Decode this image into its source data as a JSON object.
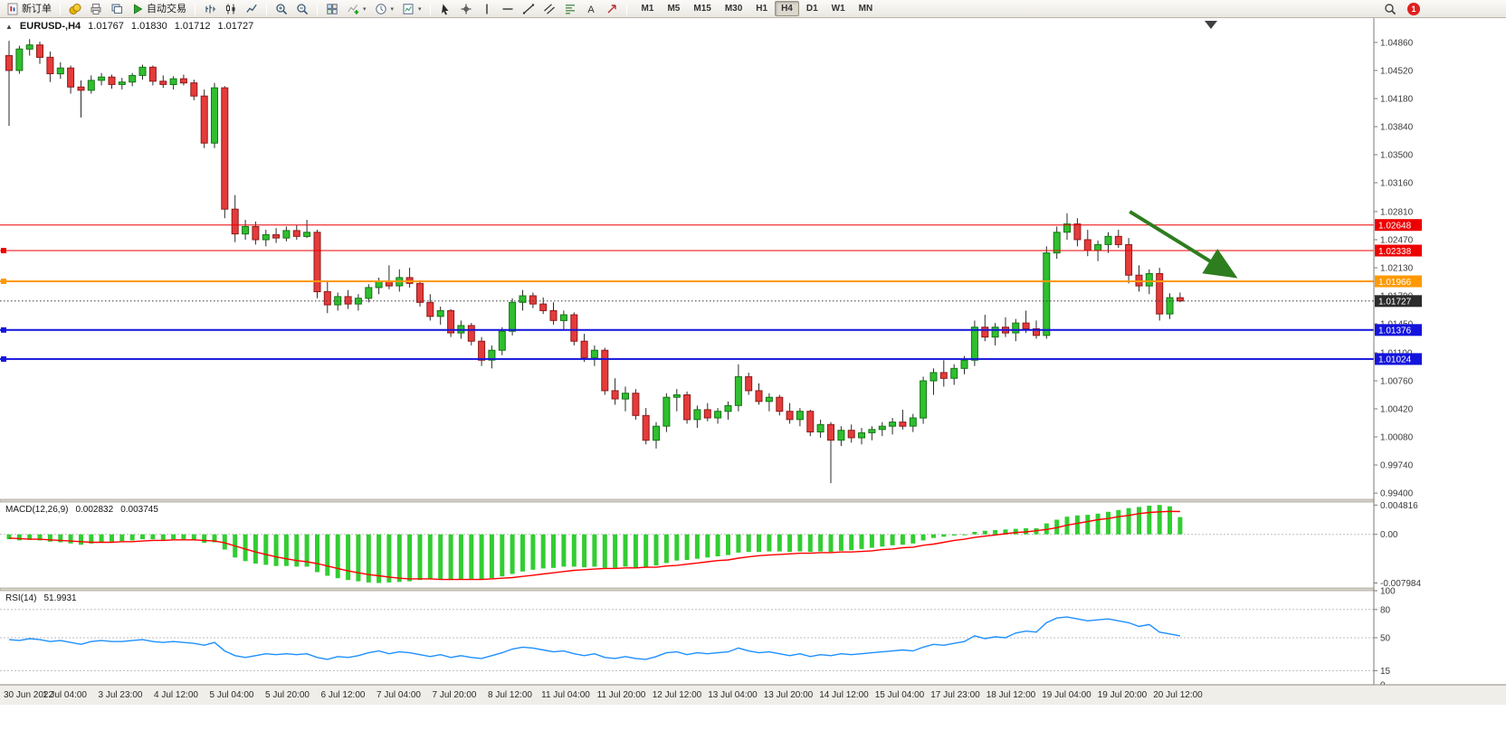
{
  "toolbar": {
    "new_order": {
      "label": "新订单",
      "icon": "new-order-icon"
    },
    "std_icons": [
      "deposit-icon",
      "print-icon",
      "window-layout-icon"
    ],
    "autotrading": {
      "label": "自动交易",
      "icon": "autotrading-icon"
    },
    "chart_icons": [
      "bar-chart-icon",
      "candlestick-chart-icon",
      "line-chart-icon"
    ],
    "zoom_icons": [
      "zoom-in-icon",
      "zoom-out-icon"
    ],
    "window_icons": [
      {
        "icon": "tile-windows-icon",
        "caret": false
      },
      {
        "icon": "indicators-icon",
        "caret": true
      },
      {
        "icon": "periods-icon",
        "caret": true
      },
      {
        "icon": "templates-icon",
        "caret": true
      }
    ],
    "draw_icons": [
      "cursor-icon",
      "crosshair-icon",
      "vertical-line-icon",
      "horizontal-line-icon",
      "trendline-icon",
      "channel-icon",
      "fibonacci-icon",
      "text-label-icon",
      "arrow-tool-icon"
    ],
    "timeframes": {
      "options": [
        "M1",
        "M5",
        "M15",
        "M30",
        "H1",
        "H4",
        "D1",
        "W1",
        "MN"
      ],
      "active": "H4"
    },
    "right": {
      "search_icon": "search-icon",
      "notification_count": "1"
    }
  },
  "colors": {
    "bull": "#2FBF2F",
    "bull_border": "#157515",
    "bear": "#E53B3B",
    "bear_border": "#8F1A1A",
    "wick": "#2A2A2A",
    "macd_histogram": "#32CD32",
    "macd_signal": "#FF0000",
    "rsi_line": "#1E90FF",
    "b_red": "#EE0000",
    "b_orange": "#FF9900",
    "b_blue": "#1414DC",
    "bid_badge": "#2B2B2B"
  },
  "chart": {
    "title": {
      "symbol": "EURUSD-,H4",
      "open": "1.01767",
      "high": "1.01830",
      "low": "1.01712",
      "close": "1.01727"
    },
    "price_axis": [
      "1.04860",
      "1.04520",
      "1.04180",
      "1.03840",
      "1.03500",
      "1.03160",
      "1.02810",
      "1.02470",
      "1.02130",
      "1.01790",
      "1.01450",
      "1.01100",
      "1.00760",
      "1.00420",
      "1.00080",
      "0.99740",
      "0.99400"
    ],
    "time_axis": [
      "30 Jun 2022",
      "1 Jul 04:00",
      "3 Jul 23:00",
      "4 Jul 12:00",
      "5 Jul 04:00",
      "5 Jul 20:00",
      "6 Jul 12:00",
      "7 Jul 04:00",
      "7 Jul 20:00",
      "8 Jul 12:00",
      "11 Jul 04:00",
      "11 Jul 20:00",
      "12 Jul 12:00",
      "13 Jul 04:00",
      "13 Jul 20:00",
      "14 Jul 12:00",
      "15 Jul 04:00",
      "17 Jul 23:00",
      "18 Jul 12:00",
      "19 Jul 04:00",
      "19 Jul 20:00",
      "20 Jul 12:00"
    ],
    "hlines": [
      {
        "price": 1.02648,
        "label": "1.02648",
        "color": "#EE0000",
        "width": 1,
        "handle": false
      },
      {
        "price": 1.02338,
        "label": "1.02338",
        "color": "#EE0000",
        "width": 1,
        "handle": true
      },
      {
        "price": 1.01966,
        "label": "1.01966",
        "color": "#FF9900",
        "width": 2,
        "handle": true
      },
      {
        "price": 1.01376,
        "label": "1.01376",
        "color": "#1414DC",
        "width": 2,
        "handle": true
      },
      {
        "price": 1.01024,
        "label": "1.01024",
        "color": "#1414DC",
        "width": 2,
        "handle": true
      }
    ],
    "bid_line": {
      "price": 1.01727,
      "label": "1.01727"
    },
    "arrow": {
      "i1": 109.1,
      "p1": 1.0281,
      "i2": 119.0,
      "p2": 1.0205,
      "color": "#2E7D1F"
    }
  },
  "chart_data": {
    "type": "candlestick",
    "symbol": "EURUSD",
    "timeframe": "H4",
    "candles": [
      [
        1.047,
        1.0488,
        1.0385,
        1.0452
      ],
      [
        1.0452,
        1.0482,
        1.0448,
        1.0478
      ],
      [
        1.0478,
        1.049,
        1.047,
        1.0483
      ],
      [
        1.0483,
        1.0487,
        1.046,
        1.0468
      ],
      [
        1.0468,
        1.0475,
        1.0438,
        1.0448
      ],
      [
        1.0448,
        1.0462,
        1.0442,
        1.0455
      ],
      [
        1.0455,
        1.0458,
        1.0424,
        1.0432
      ],
      [
        1.0432,
        1.044,
        1.0395,
        1.0428
      ],
      [
        1.0428,
        1.0446,
        1.0424,
        1.044
      ],
      [
        1.044,
        1.0449,
        1.0434,
        1.0444
      ],
      [
        1.0444,
        1.0447,
        1.043,
        1.0435
      ],
      [
        1.0435,
        1.0443,
        1.0429,
        1.0438
      ],
      [
        1.0438,
        1.0449,
        1.0433,
        1.0446
      ],
      [
        1.0446,
        1.0459,
        1.0441,
        1.0456
      ],
      [
        1.0456,
        1.0458,
        1.0434,
        1.0439
      ],
      [
        1.0439,
        1.0446,
        1.0431,
        1.0435
      ],
      [
        1.0435,
        1.0445,
        1.0429,
        1.0442
      ],
      [
        1.0442,
        1.0447,
        1.0434,
        1.0437
      ],
      [
        1.0437,
        1.0441,
        1.0416,
        1.0421
      ],
      [
        1.0421,
        1.0429,
        1.0358,
        1.0364
      ],
      [
        1.0364,
        1.0437,
        1.0358,
        1.0431
      ],
      [
        1.0431,
        1.0433,
        1.0273,
        1.0284
      ],
      [
        1.0284,
        1.0301,
        1.0244,
        1.0254
      ],
      [
        1.0254,
        1.0271,
        1.0247,
        1.0263
      ],
      [
        1.0263,
        1.0269,
        1.0241,
        1.0247
      ],
      [
        1.0247,
        1.0259,
        1.0239,
        1.0253
      ],
      [
        1.0253,
        1.0261,
        1.0243,
        1.0249
      ],
      [
        1.0249,
        1.0263,
        1.0245,
        1.0258
      ],
      [
        1.0258,
        1.0265,
        1.0247,
        1.0251
      ],
      [
        1.0251,
        1.0271,
        1.0249,
        1.0256
      ],
      [
        1.0256,
        1.0259,
        1.0176,
        1.0184
      ],
      [
        1.0184,
        1.0196,
        1.0158,
        1.0168
      ],
      [
        1.0168,
        1.0183,
        1.0161,
        1.0178
      ],
      [
        1.0178,
        1.0186,
        1.0163,
        1.0169
      ],
      [
        1.0169,
        1.0181,
        1.0161,
        1.0176
      ],
      [
        1.0176,
        1.0193,
        1.0171,
        1.0189
      ],
      [
        1.0189,
        1.0201,
        1.0181,
        1.0196
      ],
      [
        1.0196,
        1.0216,
        1.0187,
        1.0191
      ],
      [
        1.0191,
        1.0211,
        1.0184,
        1.0201
      ],
      [
        1.0201,
        1.0213,
        1.0189,
        1.0194
      ],
      [
        1.0194,
        1.0198,
        1.0166,
        1.0171
      ],
      [
        1.0171,
        1.0181,
        1.0149,
        1.0154
      ],
      [
        1.0154,
        1.0166,
        1.0144,
        1.0161
      ],
      [
        1.0161,
        1.0163,
        1.0129,
        1.0134
      ],
      [
        1.0134,
        1.0149,
        1.0127,
        1.0143
      ],
      [
        1.0143,
        1.0146,
        1.0119,
        1.0124
      ],
      [
        1.0124,
        1.0129,
        1.0094,
        1.0101
      ],
      [
        1.0101,
        1.0119,
        1.0091,
        1.0113
      ],
      [
        1.0113,
        1.0141,
        1.0107,
        1.0136
      ],
      [
        1.0136,
        1.0176,
        1.0131,
        1.0171
      ],
      [
        1.0171,
        1.0186,
        1.0161,
        1.0179
      ],
      [
        1.0179,
        1.0183,
        1.0164,
        1.0169
      ],
      [
        1.0169,
        1.0177,
        1.0157,
        1.0161
      ],
      [
        1.0161,
        1.0171,
        1.0144,
        1.0149
      ],
      [
        1.0149,
        1.0161,
        1.0137,
        1.0156
      ],
      [
        1.0156,
        1.0159,
        1.0119,
        1.0124
      ],
      [
        1.0124,
        1.0133,
        1.0099,
        1.0104
      ],
      [
        1.0104,
        1.0119,
        1.0094,
        1.0113
      ],
      [
        1.0113,
        1.0116,
        1.0059,
        1.0064
      ],
      [
        1.0064,
        1.0079,
        1.0047,
        1.0054
      ],
      [
        1.0054,
        1.0069,
        1.0039,
        1.0061
      ],
      [
        1.0061,
        1.0066,
        1.0029,
        1.0034
      ],
      [
        1.0034,
        1.0043,
        0.9999,
        1.0004
      ],
      [
        1.0004,
        1.0026,
        0.9994,
        1.0021
      ],
      [
        1.0021,
        1.0061,
        1.0014,
        1.0056
      ],
      [
        1.0056,
        1.0066,
        1.0039,
        1.0059
      ],
      [
        1.0059,
        1.0063,
        1.0024,
        1.0029
      ],
      [
        1.0029,
        1.0046,
        1.0019,
        1.0041
      ],
      [
        1.0041,
        1.0049,
        1.0027,
        1.0031
      ],
      [
        1.0031,
        1.0043,
        1.0024,
        1.0039
      ],
      [
        1.0039,
        1.0051,
        1.0029,
        1.0046
      ],
      [
        1.0046,
        1.0096,
        1.0039,
        1.0081
      ],
      [
        1.0081,
        1.0086,
        1.0059,
        1.0064
      ],
      [
        1.0064,
        1.0073,
        1.0047,
        1.0051
      ],
      [
        1.0051,
        1.0061,
        1.0039,
        1.0056
      ],
      [
        1.0056,
        1.0059,
        1.0034,
        1.0039
      ],
      [
        1.0039,
        1.0049,
        1.0024,
        1.0029
      ],
      [
        1.0029,
        1.0043,
        1.0021,
        1.0039
      ],
      [
        1.0039,
        1.0041,
        1.0009,
        1.0014
      ],
      [
        1.0014,
        1.0029,
        1.0007,
        1.0023
      ],
      [
        1.0023,
        1.0026,
        0.9952,
        1.0004
      ],
      [
        1.0004,
        1.0021,
        0.9997,
        1.0016
      ],
      [
        1.0016,
        1.0023,
        1.0001,
        1.0007
      ],
      [
        1.0007,
        1.0019,
        0.9999,
        1.0013
      ],
      [
        1.0013,
        1.0021,
        1.0004,
        1.0017
      ],
      [
        1.0017,
        1.0026,
        1.0009,
        1.0021
      ],
      [
        1.0021,
        1.0031,
        1.0011,
        1.0026
      ],
      [
        1.0026,
        1.0041,
        1.0017,
        1.0021
      ],
      [
        1.0021,
        1.0036,
        1.0014,
        1.0031
      ],
      [
        1.0031,
        1.0081,
        1.0024,
        1.0076
      ],
      [
        1.0076,
        1.0091,
        1.0059,
        1.0086
      ],
      [
        1.0086,
        1.0101,
        1.0069,
        1.0079
      ],
      [
        1.0079,
        1.0096,
        1.0071,
        1.0091
      ],
      [
        1.0091,
        1.0106,
        1.0084,
        1.0101
      ],
      [
        1.0101,
        1.0149,
        1.0094,
        1.0141
      ],
      [
        1.0141,
        1.0156,
        1.0124,
        1.0129
      ],
      [
        1.0129,
        1.0146,
        1.0119,
        1.0141
      ],
      [
        1.0141,
        1.0153,
        1.0129,
        1.0134
      ],
      [
        1.0134,
        1.0151,
        1.0124,
        1.0146
      ],
      [
        1.0146,
        1.0161,
        1.0134,
        1.0139
      ],
      [
        1.0139,
        1.0149,
        1.0127,
        1.0131
      ],
      [
        1.0131,
        1.0239,
        1.0127,
        1.0231
      ],
      [
        1.0231,
        1.0263,
        1.0224,
        1.0256
      ],
      [
        1.0256,
        1.0279,
        1.0247,
        1.0266
      ],
      [
        1.0266,
        1.0273,
        1.0239,
        1.0247
      ],
      [
        1.0247,
        1.0259,
        1.0227,
        1.0234
      ],
      [
        1.0234,
        1.0246,
        1.0221,
        1.0241
      ],
      [
        1.0241,
        1.0256,
        1.0231,
        1.0251
      ],
      [
        1.0251,
        1.0259,
        1.0237,
        1.0241
      ],
      [
        1.0241,
        1.0249,
        1.0194,
        1.0204
      ],
      [
        1.0204,
        1.0216,
        1.0184,
        1.0191
      ],
      [
        1.0191,
        1.0211,
        1.0181,
        1.0206
      ],
      [
        1.0206,
        1.0213,
        1.0149,
        1.0157
      ],
      [
        1.0157,
        1.0182,
        1.0151,
        1.01767
      ],
      [
        1.01767,
        1.0183,
        1.01712,
        1.01727
      ]
    ],
    "macd": {
      "label": "MACD(12,26,9)",
      "value": "0.002832",
      "signal_value": "0.003745",
      "axis": [
        "0.004816",
        "0.00",
        "-0.007984"
      ],
      "histogram": [
        -0.0008,
        -0.001,
        -0.0009,
        -0.001,
        -0.0012,
        -0.0013,
        -0.0015,
        -0.0017,
        -0.0015,
        -0.0013,
        -0.0012,
        -0.0011,
        -0.001,
        -0.0008,
        -0.0008,
        -0.0009,
        -0.0008,
        -0.0008,
        -0.001,
        -0.0014,
        -0.0013,
        -0.0025,
        -0.0038,
        -0.0044,
        -0.0048,
        -0.005,
        -0.0052,
        -0.0052,
        -0.0053,
        -0.0053,
        -0.0062,
        -0.0068,
        -0.0072,
        -0.0075,
        -0.0077,
        -0.0079,
        -0.00798,
        -0.0079,
        -0.0078,
        -0.0077,
        -0.0075,
        -0.0074,
        -0.0074,
        -0.0075,
        -0.0074,
        -0.0073,
        -0.0074,
        -0.0072,
        -0.0069,
        -0.0065,
        -0.0061,
        -0.0058,
        -0.0056,
        -0.0055,
        -0.0053,
        -0.0053,
        -0.0054,
        -0.0053,
        -0.0055,
        -0.0055,
        -0.0053,
        -0.0054,
        -0.0054,
        -0.0051,
        -0.0047,
        -0.0043,
        -0.0042,
        -0.004,
        -0.0038,
        -0.0036,
        -0.0034,
        -0.003,
        -0.0029,
        -0.0029,
        -0.0028,
        -0.0028,
        -0.0029,
        -0.0028,
        -0.0029,
        -0.0028,
        -0.0029,
        -0.0027,
        -0.0026,
        -0.0024,
        -0.0022,
        -0.002,
        -0.0018,
        -0.0017,
        -0.0015,
        -0.001,
        -0.0006,
        -0.0004,
        -0.0002,
        0.0,
        0.0004,
        0.0006,
        0.0007,
        0.0008,
        0.0009,
        0.001,
        0.001,
        0.0018,
        0.0024,
        0.0029,
        0.0031,
        0.0032,
        0.0034,
        0.0037,
        0.004,
        0.0043,
        0.0045,
        0.0047,
        0.00482,
        0.0046,
        0.002832
      ],
      "signal": [
        -0.0006,
        -0.0007,
        -0.0008,
        -0.0008,
        -0.0009,
        -0.001,
        -0.0011,
        -0.0012,
        -0.0013,
        -0.0013,
        -0.0013,
        -0.0012,
        -0.0012,
        -0.0011,
        -0.001,
        -0.001,
        -0.0009,
        -0.0009,
        -0.0009,
        -0.001,
        -0.0011,
        -0.0014,
        -0.0019,
        -0.0024,
        -0.0029,
        -0.0033,
        -0.0037,
        -0.004,
        -0.0043,
        -0.0045,
        -0.0048,
        -0.0052,
        -0.0056,
        -0.006,
        -0.0063,
        -0.0066,
        -0.0068,
        -0.007,
        -0.0072,
        -0.0073,
        -0.0073,
        -0.0073,
        -0.0074,
        -0.0074,
        -0.0074,
        -0.0074,
        -0.0074,
        -0.0073,
        -0.0072,
        -0.0071,
        -0.0069,
        -0.0067,
        -0.0065,
        -0.0063,
        -0.0061,
        -0.0059,
        -0.0058,
        -0.0057,
        -0.0056,
        -0.0056,
        -0.0055,
        -0.0055,
        -0.0054,
        -0.0054,
        -0.0052,
        -0.0051,
        -0.0049,
        -0.0047,
        -0.0045,
        -0.0043,
        -0.0042,
        -0.0039,
        -0.0037,
        -0.0035,
        -0.0034,
        -0.0033,
        -0.0032,
        -0.0031,
        -0.0031,
        -0.003,
        -0.003,
        -0.0029,
        -0.0029,
        -0.0028,
        -0.0027,
        -0.0025,
        -0.0024,
        -0.0022,
        -0.0021,
        -0.0018,
        -0.0016,
        -0.0013,
        -0.001,
        -0.0008,
        -0.0005,
        -0.0003,
        -0.0001,
        0.0001,
        0.0003,
        0.0004,
        0.0006,
        0.0008,
        0.0011,
        0.0015,
        0.0018,
        0.0021,
        0.0024,
        0.0026,
        0.0029,
        0.0031,
        0.0034,
        0.0036,
        0.0037,
        0.00377,
        0.003745
      ]
    },
    "rsi": {
      "label": "RSI(14)",
      "value": "51.9931",
      "axis": [
        "100",
        "80",
        "50",
        "15",
        "0"
      ],
      "levels": [
        80,
        50,
        15
      ],
      "values": [
        48,
        47,
        49,
        48,
        46,
        47,
        45,
        43,
        46,
        47,
        46,
        46,
        47,
        48,
        46,
        45,
        46,
        45,
        44,
        42,
        45,
        36,
        31,
        29,
        31,
        33,
        32,
        33,
        32,
        33,
        29,
        27,
        30,
        29,
        31,
        34,
        36,
        33,
        35,
        34,
        32,
        30,
        32,
        29,
        31,
        29,
        28,
        31,
        34,
        38,
        40,
        39,
        37,
        35,
        36,
        33,
        31,
        33,
        29,
        28,
        30,
        28,
        27,
        30,
        34,
        35,
        32,
        34,
        33,
        34,
        35,
        39,
        36,
        34,
        35,
        33,
        31,
        33,
        30,
        32,
        31,
        33,
        32,
        33,
        34,
        35,
        36,
        37,
        36,
        40,
        43,
        42,
        44,
        46,
        52,
        49,
        51,
        50,
        55,
        57,
        56,
        66,
        71,
        72,
        70,
        68,
        69,
        70,
        68,
        66,
        62,
        64,
        56,
        54,
        51.9931
      ]
    }
  }
}
